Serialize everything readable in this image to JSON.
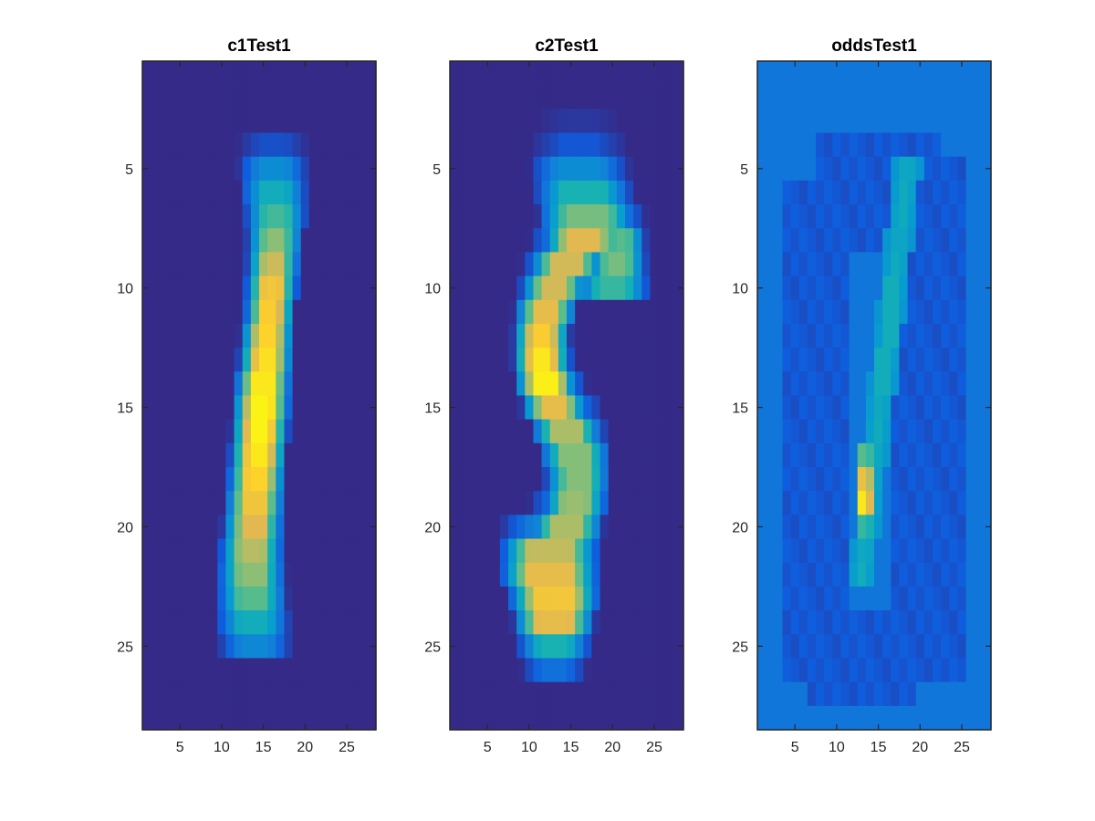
{
  "chart_data": [
    {
      "type": "heatmap",
      "title": "c1Test1",
      "colormap": "parula",
      "xlim": [
        0.5,
        28.5
      ],
      "ylim": [
        0.5,
        28.5
      ],
      "y_reversed": true,
      "xticks": [
        5,
        10,
        15,
        20,
        25
      ],
      "yticks": [
        5,
        10,
        15,
        20,
        25
      ],
      "clim": [
        0,
        1
      ],
      "background": 0,
      "stroke": [
        {
          "r": 5,
          "c": 16.2,
          "w": 2.8,
          "v": 0.28
        },
        {
          "r": 6,
          "c": 16.3,
          "w": 2.6,
          "v": 0.42
        },
        {
          "r": 7,
          "c": 16.5,
          "w": 2.3,
          "v": 0.52
        },
        {
          "r": 8,
          "c": 16.4,
          "w": 2.0,
          "v": 0.63
        },
        {
          "r": 9,
          "c": 16.2,
          "w": 1.8,
          "v": 0.74
        },
        {
          "r": 10,
          "c": 16.0,
          "w": 1.7,
          "v": 0.85
        },
        {
          "r": 11,
          "c": 15.8,
          "w": 1.6,
          "v": 0.88
        },
        {
          "r": 12,
          "c": 15.5,
          "w": 1.7,
          "v": 0.9
        },
        {
          "r": 13,
          "c": 15.3,
          "w": 1.8,
          "v": 0.93
        },
        {
          "r": 14,
          "c": 15.0,
          "w": 1.9,
          "v": 0.95
        },
        {
          "r": 15,
          "c": 14.8,
          "w": 2.0,
          "v": 0.98
        },
        {
          "r": 16,
          "c": 14.6,
          "w": 2.0,
          "v": 0.98
        },
        {
          "r": 17,
          "c": 14.4,
          "w": 2.0,
          "v": 0.95
        },
        {
          "r": 18,
          "c": 14.2,
          "w": 2.0,
          "v": 0.9
        },
        {
          "r": 19,
          "c": 14.0,
          "w": 2.1,
          "v": 0.84
        },
        {
          "r": 20,
          "c": 13.8,
          "w": 2.2,
          "v": 0.78
        },
        {
          "r": 21,
          "c": 13.6,
          "w": 2.4,
          "v": 0.7
        },
        {
          "r": 22,
          "c": 13.6,
          "w": 2.6,
          "v": 0.63
        },
        {
          "r": 23,
          "c": 13.7,
          "w": 2.8,
          "v": 0.55
        },
        {
          "r": 24,
          "c": 13.8,
          "w": 3.0,
          "v": 0.42
        },
        {
          "r": 25,
          "c": 14.0,
          "w": 3.0,
          "v": 0.26
        }
      ]
    },
    {
      "type": "heatmap",
      "title": "c2Test1",
      "colormap": "parula",
      "xlim": [
        0.5,
        28.5
      ],
      "ylim": [
        0.5,
        28.5
      ],
      "y_reversed": true,
      "xticks": [
        5,
        10,
        15,
        20,
        25
      ],
      "yticks": [
        5,
        10,
        15,
        20,
        25
      ],
      "clim": [
        0,
        1
      ],
      "background": 0,
      "stroke": [
        {
          "r": 4,
          "c": 16.0,
          "w": 3.5,
          "v": 0.1
        },
        {
          "r": 5,
          "c": 16.0,
          "w": 4.5,
          "v": 0.28
        },
        {
          "r": 6,
          "c": 16.5,
          "w": 4.5,
          "v": 0.45
        },
        {
          "r": 7,
          "c": 17.0,
          "w": 4.5,
          "v": 0.6
        },
        {
          "r": 8,
          "c": 16.5,
          "w": 3.5,
          "v": 0.78
        },
        {
          "r": 8,
          "c": 21.0,
          "w": 1.6,
          "v": 0.55
        },
        {
          "r": 9,
          "c": 14.5,
          "w": 3.0,
          "v": 0.75
        },
        {
          "r": 9,
          "c": 20.5,
          "w": 2.2,
          "v": 0.6
        },
        {
          "r": 10,
          "c": 13.0,
          "w": 2.5,
          "v": 0.75
        },
        {
          "r": 10,
          "c": 20.0,
          "w": 3.0,
          "v": 0.5
        },
        {
          "r": 11,
          "c": 12.0,
          "w": 2.2,
          "v": 0.8
        },
        {
          "r": 12,
          "c": 11.5,
          "w": 2.0,
          "v": 0.88
        },
        {
          "r": 13,
          "c": 11.5,
          "w": 2.0,
          "v": 0.95
        },
        {
          "r": 14,
          "c": 12.0,
          "w": 2.2,
          "v": 0.97
        },
        {
          "r": 15,
          "c": 13.0,
          "w": 2.5,
          "v": 0.8
        },
        {
          "r": 16,
          "c": 14.5,
          "w": 2.8,
          "v": 0.68
        },
        {
          "r": 17,
          "c": 15.5,
          "w": 2.8,
          "v": 0.62
        },
        {
          "r": 18,
          "c": 15.8,
          "w": 2.5,
          "v": 0.62
        },
        {
          "r": 19,
          "c": 15.5,
          "w": 2.5,
          "v": 0.65
        },
        {
          "r": 20,
          "c": 14.5,
          "w": 3.0,
          "v": 0.68
        },
        {
          "r": 21,
          "c": 12.5,
          "w": 4.5,
          "v": 0.72
        },
        {
          "r": 22,
          "c": 12.5,
          "w": 4.5,
          "v": 0.8
        },
        {
          "r": 23,
          "c": 13.0,
          "w": 4.0,
          "v": 0.85
        },
        {
          "r": 24,
          "c": 13.0,
          "w": 3.5,
          "v": 0.8
        },
        {
          "r": 25,
          "c": 13.0,
          "w": 3.0,
          "v": 0.45
        },
        {
          "r": 26,
          "c": 13.0,
          "w": 2.5,
          "v": 0.18
        }
      ]
    },
    {
      "type": "heatmap",
      "title": "oddsTest1",
      "colormap": "parula",
      "xlim": [
        0.5,
        28.5
      ],
      "ylim": [
        0.5,
        28.5
      ],
      "y_reversed": true,
      "xticks": [
        5,
        10,
        15,
        20,
        25
      ],
      "yticks": [
        5,
        10,
        15,
        20,
        25
      ],
      "clim": [
        0,
        1
      ],
      "background": 0.2,
      "hotspot": {
        "r": 19,
        "c": 13,
        "v": 0.95
      }
    }
  ]
}
